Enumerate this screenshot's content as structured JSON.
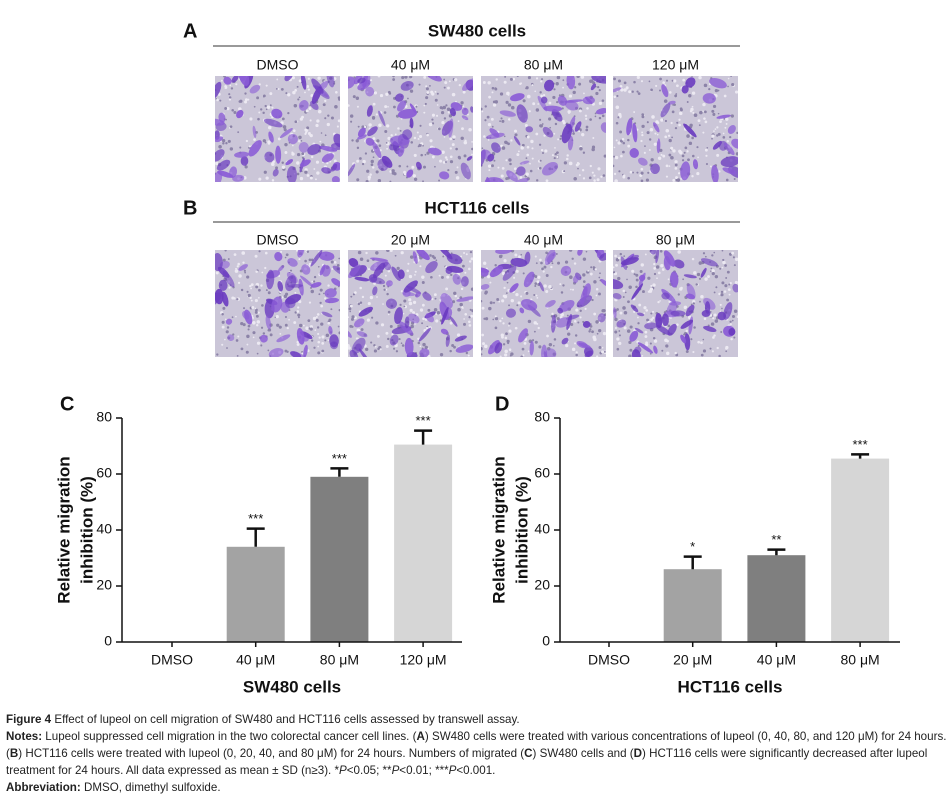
{
  "panels": [
    {
      "label": "A",
      "title": "SW480 cells",
      "conditions": [
        "DMSO",
        "40 μM",
        "80 μM",
        "120 μM"
      ]
    },
    {
      "label": "B",
      "title": "HCT116 cells",
      "conditions": [
        "DMSO",
        "20 μM",
        "40 μM",
        "80 μM"
      ]
    }
  ],
  "chart_data": [
    {
      "type": "bar",
      "label": "C",
      "xlabel": "SW480 cells",
      "ylabel": [
        "Relative migration",
        "inhibition (%)"
      ],
      "categories": [
        "DMSO",
        "40 μM",
        "80 μM",
        "120 μM"
      ],
      "values": [
        0,
        34,
        59,
        70.5
      ],
      "error": [
        null,
        6.5,
        3,
        5
      ],
      "annotations": [
        null,
        "***",
        "***",
        "***"
      ],
      "colors": [
        "#a6a6a6",
        "#a3a3a3",
        "#7f7f7f",
        "#d6d6d6"
      ],
      "ylim": [
        0,
        80
      ],
      "yticks": [
        0,
        20,
        40,
        60,
        80
      ]
    },
    {
      "type": "bar",
      "label": "D",
      "xlabel": "HCT116 cells",
      "ylabel": [
        "Relative migration",
        "inhibition (%)"
      ],
      "categories": [
        "DMSO",
        "20 μM",
        "40 μM",
        "80 μM"
      ],
      "values": [
        0,
        26,
        31,
        65.5
      ],
      "error": [
        null,
        4.5,
        2,
        1.5
      ],
      "annotations": [
        null,
        "*",
        "**",
        "***"
      ],
      "colors": [
        "#a6a6a6",
        "#a3a3a3",
        "#7f7f7f",
        "#d6d6d6"
      ],
      "ylim": [
        0,
        80
      ],
      "yticks": [
        0,
        20,
        40,
        60,
        80
      ]
    }
  ],
  "caption": {
    "figure_label": "Figure 4",
    "title": "Effect of lupeol on cell migration of SW480 and HCT116 cells assessed by transwell assay.",
    "notes": [
      {
        "text": "Notes:",
        "bold": true
      },
      {
        "text": " Lupeol suppressed cell migration in the two colorectal cancer cell lines. ("
      },
      {
        "text": "A",
        "bold": true
      },
      {
        "text": ") SW480 cells were treated with various concentrations of lupeol (0, 40, 80, and 120 μM) for 24 hours. ("
      },
      {
        "text": "B",
        "bold": true
      },
      {
        "text": ") HCT116 cells were treated with lupeol (0, 20, 40, and 80 μM) for 24 hours. Numbers of migrated ("
      },
      {
        "text": "C",
        "bold": true
      },
      {
        "text": ") SW480 cells and ("
      },
      {
        "text": "D",
        "bold": true
      },
      {
        "text": ") HCT116 cells were significantly decreased after lupeol treatment for 24 hours. All data expressed as mean ± SD (n≥3). *"
      },
      {
        "text": "P",
        "italic": true
      },
      {
        "text": "<0.05; **"
      },
      {
        "text": "P",
        "italic": true
      },
      {
        "text": "<0.01; ***"
      },
      {
        "text": "P",
        "italic": true
      },
      {
        "text": "<0.001."
      }
    ],
    "abbreviation": [
      {
        "text": "Abbreviation:",
        "bold": true
      },
      {
        "text": " DMSO, dimethyl sulfoxide."
      }
    ]
  }
}
